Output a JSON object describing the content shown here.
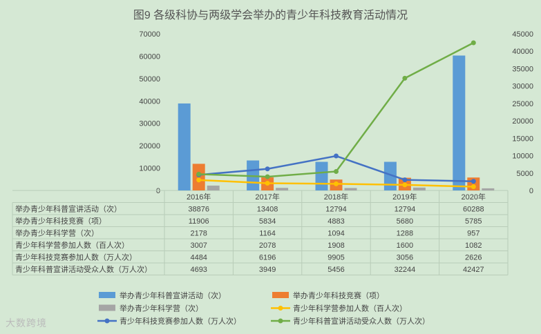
{
  "title": "图9 各级科协与两级学会举办的青少年科技教育活动情况",
  "watermark": "大数跨境",
  "chart_data": {
    "type": "bar",
    "categories": [
      "2016年",
      "2017年",
      "2018年",
      "2019年",
      "2020年"
    ],
    "y_left_lim": [
      0,
      70000
    ],
    "y_right_lim": [
      0,
      45000
    ],
    "y_left_ticks": [
      "0",
      "10000",
      "20000",
      "30000",
      "40000",
      "50000",
      "60000",
      "70000"
    ],
    "y_right_ticks": [
      "0",
      "5000",
      "10000",
      "15000",
      "20000",
      "25000",
      "30000",
      "35000",
      "40000",
      "45000"
    ],
    "series": [
      {
        "name": "举办青少年科普宣讲活动（次）",
        "kind": "bar",
        "axis": "left",
        "color": "#5b9bd5",
        "values": [
          38876,
          13408,
          12794,
          12794,
          60288
        ]
      },
      {
        "name": "举办青少年科技竞赛（项）",
        "kind": "bar",
        "axis": "left",
        "color": "#ed7d31",
        "values": [
          11906,
          5834,
          4883,
          5680,
          5785
        ]
      },
      {
        "name": "举办青少年科学营（次）",
        "kind": "bar",
        "axis": "left",
        "color": "#a5a5a5",
        "values": [
          2178,
          1164,
          1094,
          1288,
          957
        ]
      },
      {
        "name": "青少年科学营参加人数（百人次）",
        "kind": "line",
        "axis": "right",
        "color": "#ffc000",
        "values": [
          3007,
          2078,
          1908,
          1600,
          1082
        ]
      },
      {
        "name": "青少年科技竞赛参加人数（万人次）",
        "kind": "line",
        "axis": "right",
        "color": "#4472c4",
        "values": [
          4484,
          6196,
          9905,
          3056,
          2626
        ]
      },
      {
        "name": "青少年科普宣讲活动受众人数（万人次）",
        "kind": "line",
        "axis": "right",
        "color": "#70ad47",
        "values": [
          4693,
          3949,
          5456,
          32244,
          42427
        ]
      }
    ],
    "table_display": [
      [
        "38876",
        "13408",
        "12794",
        "12794",
        "60288"
      ],
      [
        "11906",
        "5834",
        "4883",
        "5680",
        "5785"
      ],
      [
        "2178",
        "1164",
        "1094",
        "1288",
        "957"
      ],
      [
        "3007",
        "2078",
        "1908",
        "1600",
        "1082"
      ],
      [
        "4484",
        "6196",
        "9905",
        "3056",
        "2626"
      ],
      [
        "4693",
        "3949",
        "5456",
        "32244",
        "42427"
      ]
    ],
    "grid": false,
    "legend_position": "bottom"
  }
}
